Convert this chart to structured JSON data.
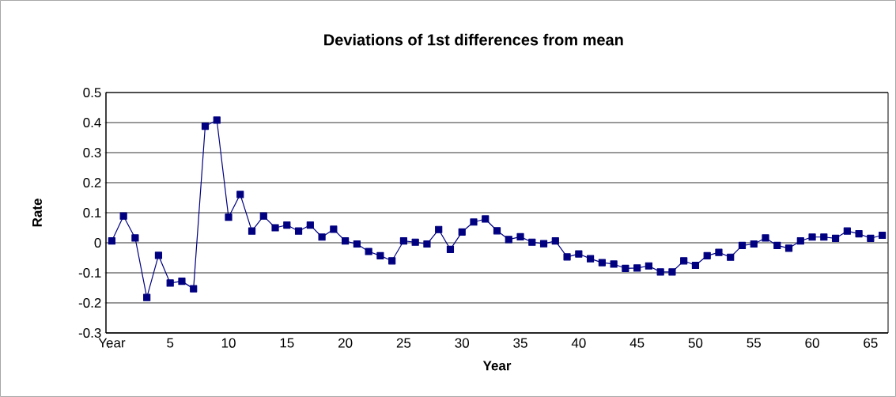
{
  "chart_data": {
    "type": "line",
    "title": "Deviations of 1st differences from mean",
    "xlabel": "Year",
    "ylabel": "Rate",
    "categories": [
      "Year",
      null,
      null,
      null,
      null,
      "5",
      null,
      null,
      null,
      null,
      "10",
      null,
      null,
      null,
      null,
      "15",
      null,
      null,
      null,
      null,
      "20",
      null,
      null,
      null,
      null,
      "25",
      null,
      null,
      null,
      null,
      "30",
      null,
      null,
      null,
      null,
      "35",
      null,
      null,
      null,
      null,
      "40",
      null,
      null,
      null,
      null,
      "45",
      null,
      null,
      null,
      null,
      "50",
      null,
      null,
      null,
      null,
      "55",
      null,
      null,
      null,
      null,
      "60",
      null,
      null,
      null,
      null,
      "65",
      null
    ],
    "values": [
      0.006,
      0.089,
      0.016,
      -0.182,
      -0.042,
      -0.134,
      -0.128,
      -0.153,
      0.388,
      0.408,
      0.085,
      0.161,
      0.039,
      0.089,
      0.05,
      0.059,
      0.039,
      0.059,
      0.019,
      0.045,
      0.006,
      -0.004,
      -0.029,
      -0.043,
      -0.06,
      0.006,
      0.002,
      -0.004,
      0.044,
      -0.022,
      0.036,
      0.069,
      0.079,
      0.04,
      0.011,
      0.02,
      0.002,
      -0.003,
      0.006,
      -0.047,
      -0.037,
      -0.053,
      -0.066,
      -0.071,
      -0.085,
      -0.084,
      -0.077,
      -0.097,
      -0.097,
      -0.06,
      -0.075,
      -0.043,
      -0.032,
      -0.048,
      -0.009,
      -0.004,
      0.016,
      -0.009,
      -0.018,
      0.006,
      0.019,
      0.019,
      0.015,
      0.039,
      0.03,
      0.015,
      0.025
    ],
    "color": "#000080",
    "marker": "square",
    "line_style": "solid",
    "grid": "y",
    "ylim": [
      -0.3,
      0.5
    ],
    "yticks": [
      -0.3,
      -0.2,
      -0.1,
      0,
      0.1,
      0.2,
      0.3,
      0.4,
      0.5
    ]
  }
}
